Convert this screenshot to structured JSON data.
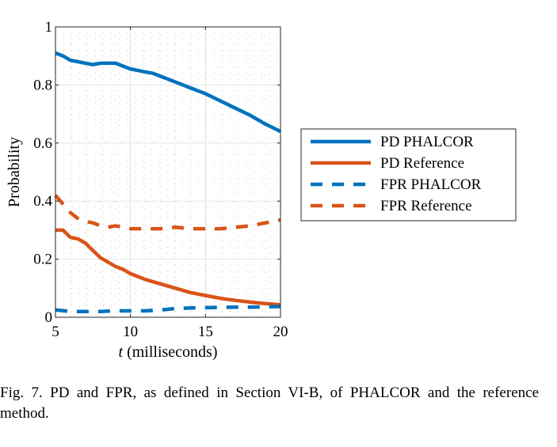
{
  "chart_data": {
    "type": "line",
    "xlabel_var": "t",
    "xlabel_rest": " (milliseconds)",
    "ylabel": "Probability",
    "xlim": [
      5,
      20
    ],
    "ylim": [
      0,
      1
    ],
    "xticks": [
      5,
      10,
      15,
      20
    ],
    "yticks": [
      0,
      0.2,
      0.4,
      0.6,
      0.8,
      1
    ],
    "ytick_labels": [
      "0",
      "0.2",
      "0.4",
      "0.6",
      "0.8",
      "1"
    ],
    "grid": true,
    "legend_position": "outside-right",
    "series": [
      {
        "name": "PD PHALCOR",
        "color": "#0072BD",
        "style": "solid",
        "x": [
          5,
          5.5,
          6,
          6.5,
          7,
          7.5,
          8,
          8.5,
          9,
          9.5,
          10,
          10.5,
          11,
          11.5,
          12,
          13,
          14,
          15,
          16,
          17,
          18,
          19,
          20
        ],
        "y": [
          0.91,
          0.9,
          0.885,
          0.88,
          0.875,
          0.87,
          0.875,
          0.875,
          0.875,
          0.865,
          0.855,
          0.85,
          0.845,
          0.84,
          0.83,
          0.81,
          0.79,
          0.77,
          0.745,
          0.72,
          0.695,
          0.665,
          0.64
        ]
      },
      {
        "name": "PD Reference",
        "color": "#D95319",
        "style": "solid",
        "x": [
          5,
          5.5,
          6,
          6.5,
          7,
          7.5,
          8,
          8.5,
          9,
          9.5,
          10,
          10.5,
          11,
          12,
          13,
          14,
          15,
          16,
          17,
          18,
          19,
          20
        ],
        "y": [
          0.3,
          0.3,
          0.275,
          0.27,
          0.255,
          0.23,
          0.205,
          0.19,
          0.175,
          0.165,
          0.15,
          0.14,
          0.13,
          0.115,
          0.1,
          0.085,
          0.075,
          0.065,
          0.058,
          0.052,
          0.047,
          0.043
        ]
      },
      {
        "name": "FPR PHALCOR",
        "color": "#0072BD",
        "style": "dashed",
        "x": [
          5,
          6,
          7,
          8,
          9,
          10,
          11,
          12,
          13,
          14,
          15,
          16,
          17,
          18,
          19,
          20
        ],
        "y": [
          0.025,
          0.02,
          0.02,
          0.02,
          0.022,
          0.022,
          0.022,
          0.025,
          0.03,
          0.032,
          0.033,
          0.034,
          0.035,
          0.035,
          0.036,
          0.037
        ]
      },
      {
        "name": "FPR Reference",
        "color": "#D95319",
        "style": "dashed",
        "x": [
          5,
          5.5,
          6,
          6.5,
          7,
          7.5,
          8,
          8.5,
          9,
          9.5,
          10,
          11,
          12,
          13,
          14,
          15,
          16,
          17,
          18,
          19,
          20
        ],
        "y": [
          0.42,
          0.39,
          0.36,
          0.34,
          0.33,
          0.325,
          0.315,
          0.31,
          0.315,
          0.31,
          0.305,
          0.305,
          0.305,
          0.31,
          0.305,
          0.305,
          0.305,
          0.31,
          0.315,
          0.325,
          0.335
        ]
      }
    ]
  },
  "caption": "Fig. 7.   PD and FPR, as defined in Section VI-B, of PHALCOR and the reference method."
}
